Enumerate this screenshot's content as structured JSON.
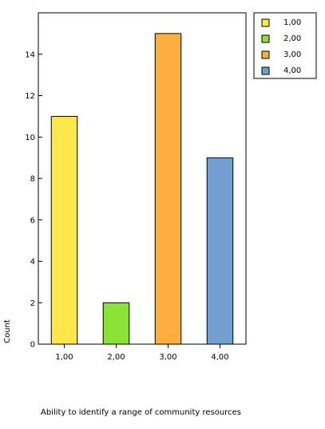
{
  "chart_data": {
    "type": "bar",
    "categories": [
      "1,00",
      "2,00",
      "3,00",
      "4,00"
    ],
    "values": [
      11,
      2,
      15,
      9
    ],
    "colors": [
      "#fde74c",
      "#8ae234",
      "#fcaf3e",
      "#729fcf"
    ],
    "xlabel": "Ability to identify a range of community resources",
    "ylabel": "Count",
    "ylim": [
      0,
      16
    ],
    "yticks": [
      0,
      2,
      4,
      6,
      8,
      10,
      12,
      14
    ],
    "ytick_labels": [
      "0",
      "2",
      "4",
      "6",
      "8",
      "10",
      "12",
      "14"
    ],
    "grid": false,
    "legend": {
      "position": "top-right",
      "entries": [
        "1,00",
        "2,00",
        "3,00",
        "4,00"
      ]
    }
  }
}
